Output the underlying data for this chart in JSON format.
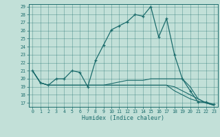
{
  "xlabel": "Humidex (Indice chaleur)",
  "background_color": "#c2e0d8",
  "line_color": "#1a6b6b",
  "xlim": [
    -0.5,
    23.5
  ],
  "ylim": [
    16.5,
    29.3
  ],
  "yticks": [
    17,
    18,
    19,
    20,
    21,
    22,
    23,
    24,
    25,
    26,
    27,
    28,
    29
  ],
  "xticks": [
    0,
    1,
    2,
    3,
    4,
    5,
    6,
    7,
    8,
    9,
    10,
    11,
    12,
    13,
    14,
    15,
    16,
    17,
    18,
    19,
    20,
    21,
    22,
    23
  ],
  "series": [
    [
      21,
      19.5,
      19.2,
      20,
      20,
      21,
      20.8,
      19,
      22.3,
      24.2,
      26.1,
      26.6,
      27.1,
      28,
      27.8,
      29,
      25.2,
      27.5,
      23,
      20,
      18.5,
      17.1,
      17.1,
      16.8
    ],
    [
      21,
      19.5,
      19.2,
      19.2,
      19.2,
      19.2,
      19.2,
      19.2,
      19.2,
      19.2,
      19.4,
      19.6,
      19.8,
      19.8,
      19.8,
      20,
      20,
      20,
      20,
      20,
      19,
      17.5,
      17,
      16.7
    ],
    [
      21,
      19.5,
      19.2,
      19.2,
      19.2,
      19.2,
      19.2,
      19.2,
      19.2,
      19.2,
      19.2,
      19.2,
      19.2,
      19.2,
      19.2,
      19.2,
      19.2,
      19.2,
      19,
      18.5,
      18,
      17.5,
      17,
      16.7
    ],
    [
      21,
      19.5,
      19.2,
      19.2,
      19.2,
      19.2,
      19.2,
      19.2,
      19.2,
      19.2,
      19.2,
      19.2,
      19.2,
      19.2,
      19.2,
      19.2,
      19.2,
      19.2,
      18.5,
      18,
      17.5,
      17.2,
      17,
      16.7
    ]
  ]
}
